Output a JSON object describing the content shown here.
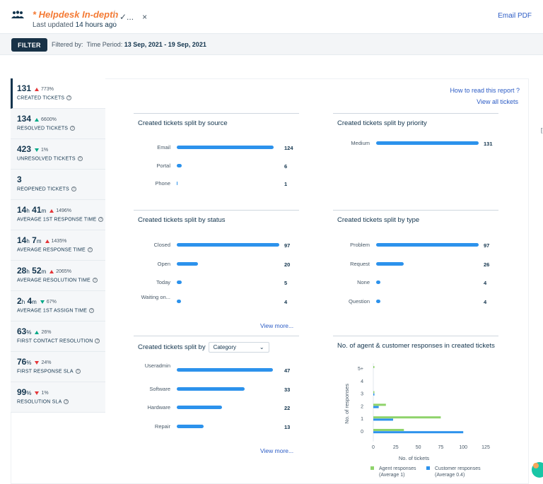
{
  "header": {
    "title": "* Helpdesk In-depth",
    "updated_prefix": "Last updated",
    "updated_value": "14 hours ago",
    "email_pdf": "Email PDF",
    "close_glyph": "×",
    "check_glyph": "✓..."
  },
  "filter": {
    "button": "FILTER",
    "prefix": "Filtered by:",
    "period_label": "Time Period:",
    "period_value": "13 Sep, 2021 - 19 Sep, 2021"
  },
  "metrics": [
    {
      "value": "131",
      "change": "773%",
      "label": "CREATED TICKETS",
      "dir": "up",
      "good": false
    },
    {
      "value": "134",
      "change": "6600%",
      "label": "RESOLVED TICKETS",
      "dir": "up",
      "good": true
    },
    {
      "value": "423",
      "change": "1%",
      "label": "UNRESOLVED TICKETS",
      "dir": "down",
      "good": true
    },
    {
      "value": "3",
      "change": "",
      "label": "REOPENED TICKETS",
      "dir": "",
      "good": true
    },
    {
      "v1": "14",
      "u1": "h",
      "v2": "41",
      "u2": "m",
      "change": "1496%",
      "label": "AVERAGE 1ST RESPONSE TIME",
      "dir": "up",
      "good": false
    },
    {
      "v1": "14",
      "u1": "h",
      "v2": "7",
      "u2": "m",
      "change": "1435%",
      "label": "AVERAGE RESPONSE TIME",
      "dir": "up",
      "good": false
    },
    {
      "v1": "28",
      "u1": "h",
      "v2": "52",
      "u2": "m",
      "change": "2065%",
      "label": "AVERAGE RESOLUTION TIME",
      "dir": "up",
      "good": false
    },
    {
      "v1": "2",
      "u1": "h",
      "v2": "4",
      "u2": "m",
      "change": "67%",
      "label": "AVERAGE 1ST ASSIGN TIME",
      "dir": "down",
      "good": true
    },
    {
      "v1": "63",
      "u1": "%",
      "change": "26%",
      "label": "FIRST CONTACT RESOLUTION",
      "dir": "up",
      "good": true
    },
    {
      "v1": "76",
      "u1": "%",
      "change": "24%",
      "label": "FIRST RESPONSE SLA",
      "dir": "down",
      "good": false
    },
    {
      "v1": "99",
      "u1": "%",
      "change": "1%",
      "label": "RESOLUTION SLA",
      "dir": "down",
      "good": false
    }
  ],
  "links": {
    "how_to": "How to read this report ?",
    "view_all": "View all tickets",
    "view_more": "View more..."
  },
  "cards": {
    "source": {
      "title": "Created tickets split by source",
      "rows": [
        {
          "label": "Email",
          "count": 124
        },
        {
          "label": "Portal",
          "count": 6
        },
        {
          "label": "Phone",
          "count": 1
        }
      ]
    },
    "priority": {
      "title": "Created tickets split by priority",
      "rows": [
        {
          "label": "Medium",
          "count": 131
        }
      ]
    },
    "status": {
      "title": "Created tickets split by status",
      "rows": [
        {
          "label": "Closed",
          "count": 97
        },
        {
          "label": "Open",
          "count": 20
        },
        {
          "label": "Today",
          "count": 5
        },
        {
          "label": "Waiting on...",
          "count": 4
        }
      ]
    },
    "type": {
      "title": "Created tickets split by type",
      "rows": [
        {
          "label": "Problem",
          "count": 97
        },
        {
          "label": "Request",
          "count": 26
        },
        {
          "label": "None",
          "count": 4
        },
        {
          "label": "Question",
          "count": 4
        }
      ]
    },
    "category": {
      "title": "Created tickets split by",
      "select": "Category",
      "rows": [
        {
          "label": "Useradmin",
          "count": 47
        },
        {
          "label": "Software",
          "count": 33
        },
        {
          "label": "Hardware",
          "count": 22
        },
        {
          "label": "Repair",
          "count": 13
        }
      ]
    },
    "responses": {
      "title": "No. of agent & customer responses in created tickets"
    }
  },
  "chart_data": {
    "type": "bar",
    "orientation": "horizontal",
    "title": "No. of agent & customer responses in created tickets",
    "categories": [
      "5+",
      "4",
      "3",
      "2",
      "1",
      "0"
    ],
    "series": [
      {
        "name": "Agent responses",
        "note": "(Average 1)",
        "color": "#8fd36b",
        "values": [
          1,
          0,
          1,
          14,
          75,
          34
        ]
      },
      {
        "name": "Customer responses",
        "note": "(Average 0.4)",
        "color": "#2c92ec",
        "values": [
          0,
          0,
          1,
          6,
          22,
          100
        ]
      }
    ],
    "xlabel": "No. of tickets",
    "ylabel": "No. of responses",
    "xticks": [
      0,
      25,
      50,
      75,
      100,
      125
    ],
    "xlim": [
      0,
      125
    ],
    "legend": "bottom"
  },
  "right_edge_glyph": "["
}
